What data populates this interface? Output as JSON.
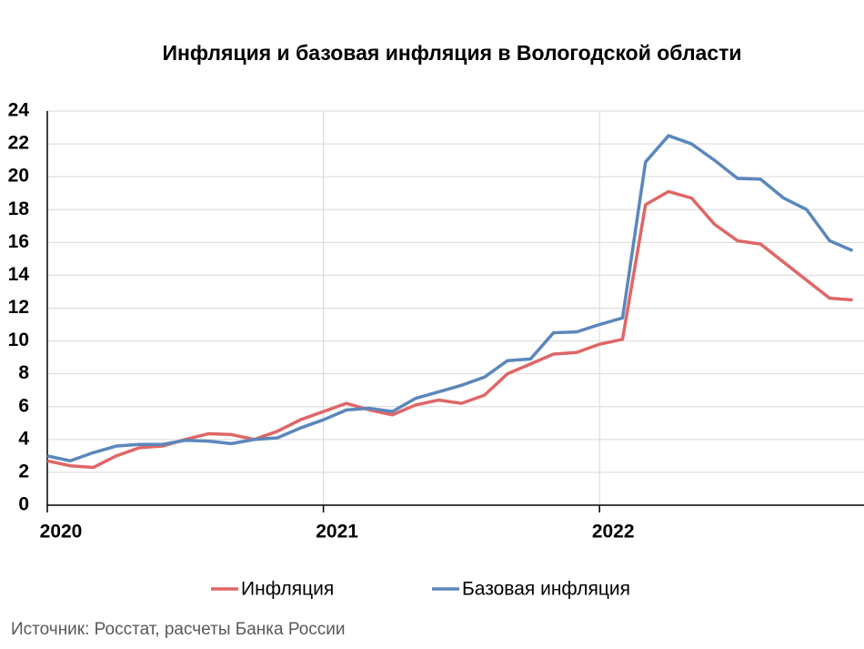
{
  "chart_data": {
    "type": "line",
    "title": "Инфляция и базовая инфляция в Вологодской области",
    "source": "Источник: Росстат, расчеты Банка России",
    "categories": [
      "2020",
      null,
      null,
      null,
      null,
      null,
      null,
      null,
      null,
      null,
      null,
      null,
      "2021",
      null,
      null,
      null,
      null,
      null,
      null,
      null,
      null,
      null,
      null,
      null,
      "2022",
      null,
      null,
      null,
      null,
      null,
      null,
      null,
      null,
      null,
      null,
      null
    ],
    "series": [
      {
        "name": "Инфляция",
        "color": "#e06666",
        "values": [
          2.7,
          2.4,
          2.3,
          3.0,
          3.5,
          3.6,
          4.0,
          4.35,
          4.3,
          4.0,
          4.5,
          5.2,
          5.7,
          6.2,
          5.8,
          5.5,
          6.1,
          6.4,
          6.2,
          6.7,
          8.0,
          8.6,
          9.2,
          9.3,
          9.8,
          10.1,
          18.3,
          19.1,
          18.7,
          17.1,
          16.1,
          15.9,
          14.8,
          13.7,
          12.6,
          12.5
        ]
      },
      {
        "name": "Базовая инфляция",
        "color": "#5b87bb",
        "values": [
          3.0,
          2.7,
          3.2,
          3.6,
          3.7,
          3.7,
          3.95,
          3.9,
          3.75,
          4.0,
          4.1,
          4.7,
          5.2,
          5.8,
          5.9,
          5.7,
          6.5,
          6.9,
          7.3,
          7.8,
          8.8,
          8.9,
          10.5,
          10.55,
          11.0,
          11.4,
          20.9,
          22.5,
          22.0,
          21.0,
          19.9,
          19.85,
          18.7,
          18.0,
          16.1,
          15.5
        ]
      }
    ],
    "ylim": [
      0,
      24
    ],
    "yticks": [
      0,
      2,
      4,
      6,
      8,
      10,
      12,
      14,
      16,
      18,
      20,
      22,
      24
    ],
    "grid": true,
    "legend": "bottom"
  }
}
